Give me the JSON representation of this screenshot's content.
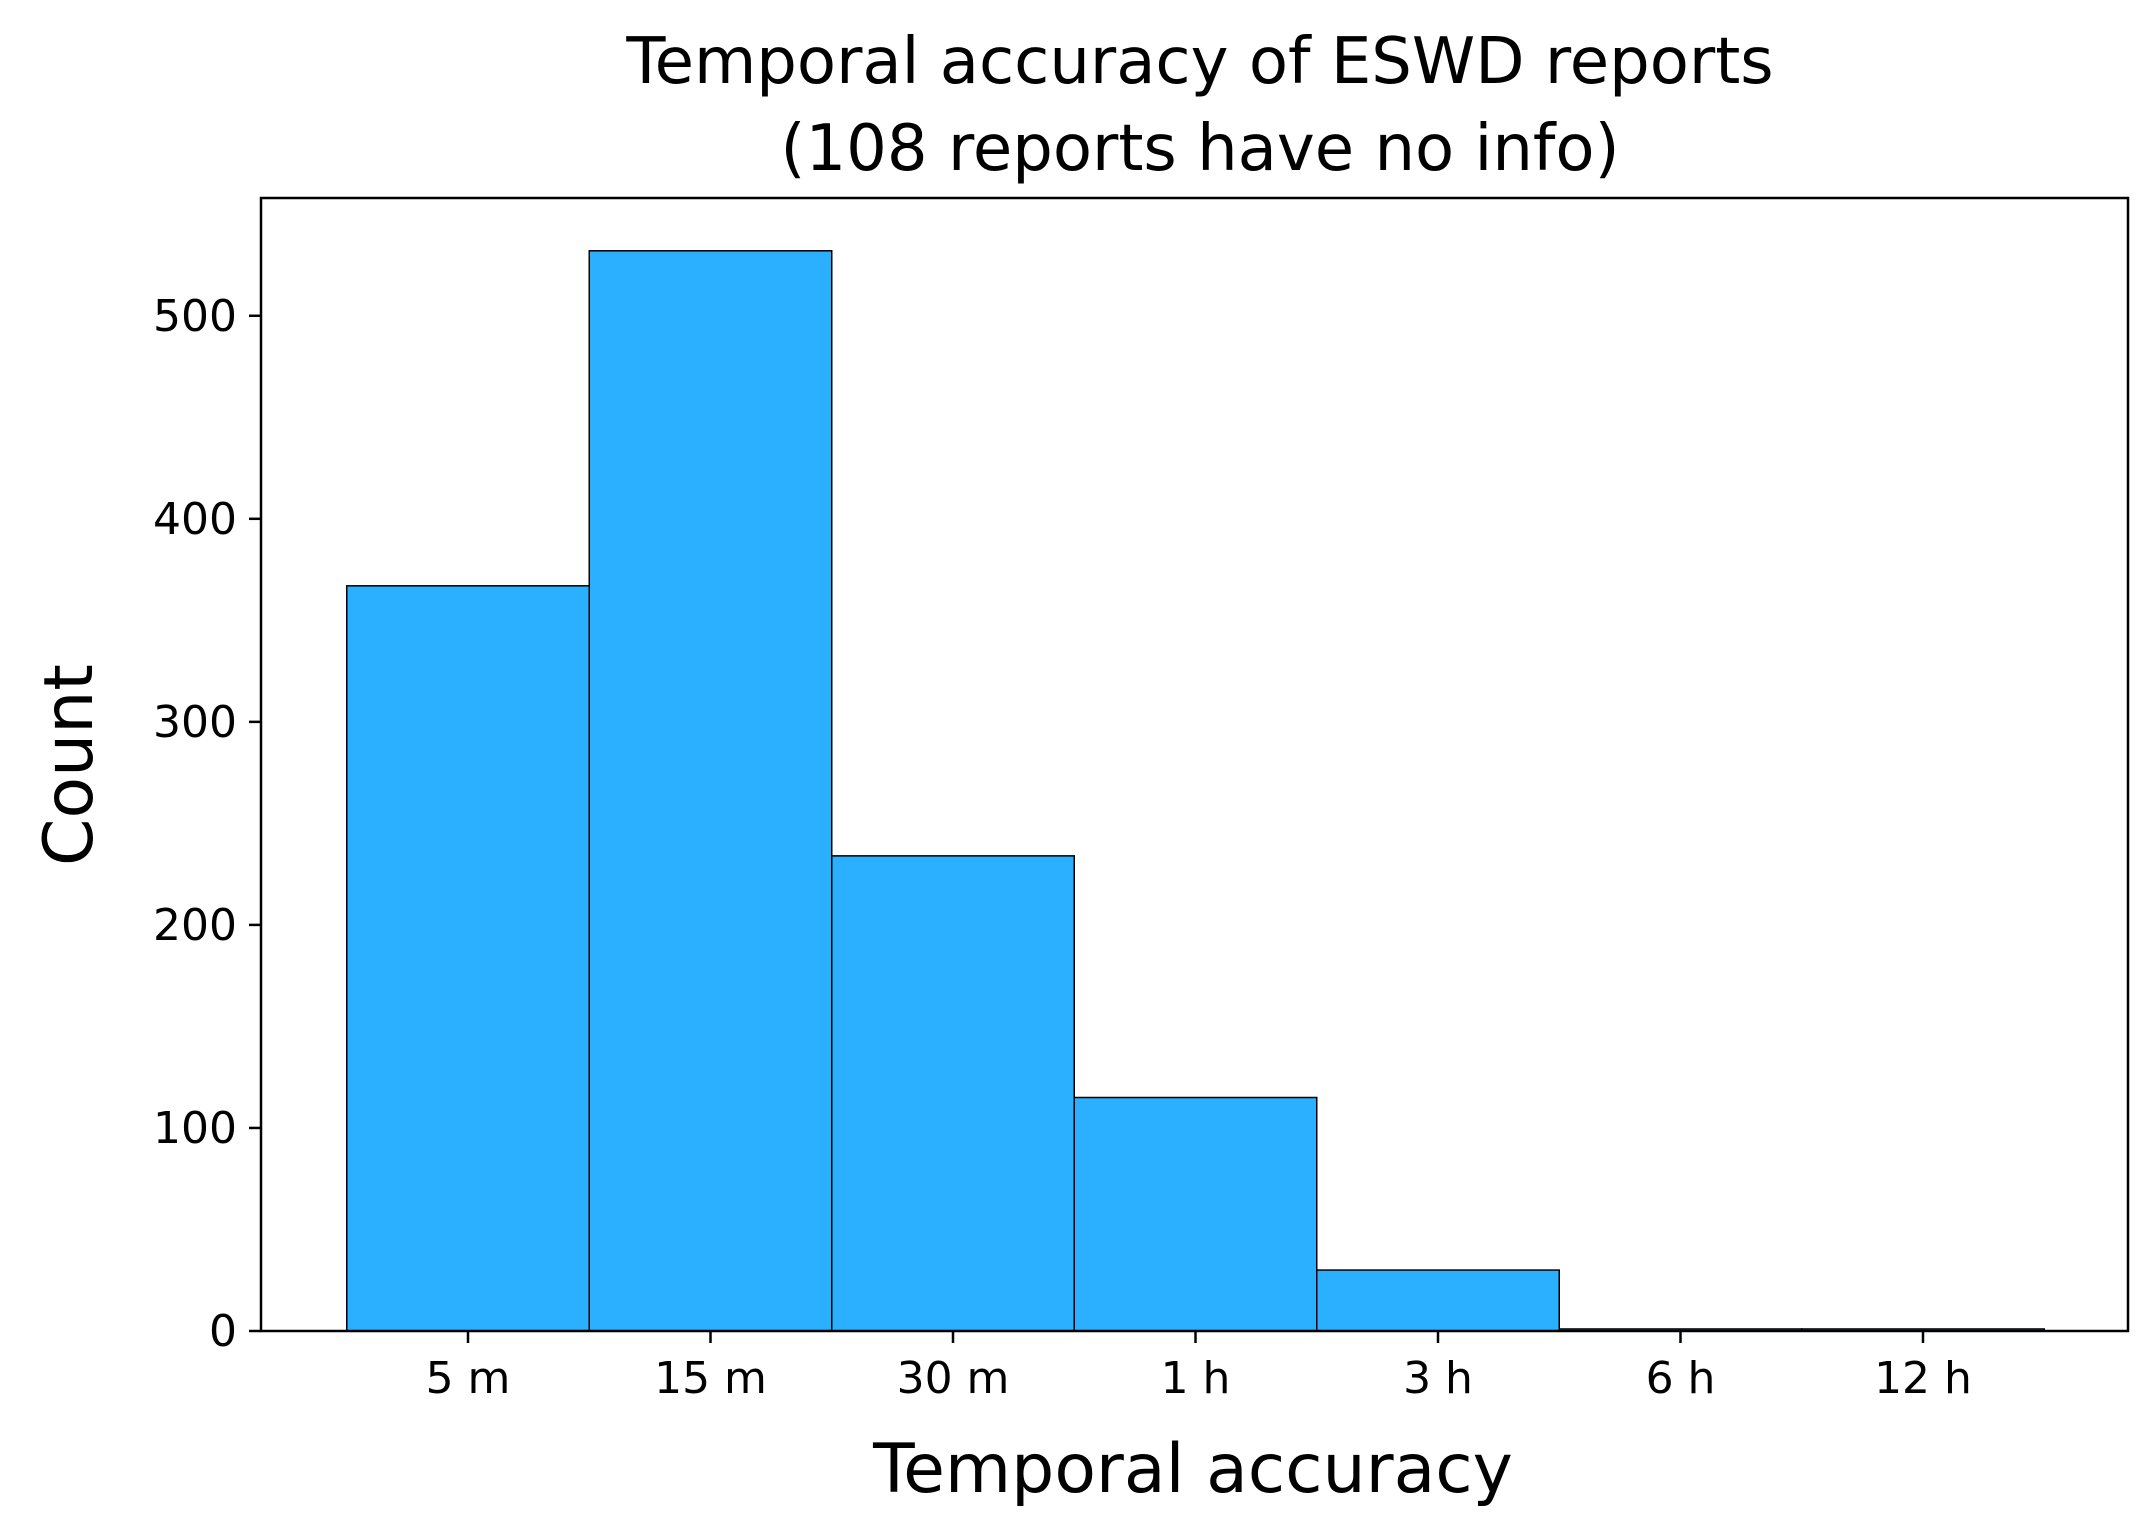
{
  "chart_data": {
    "type": "bar",
    "title": "Temporal accuracy of ESWD reports",
    "subtitle": "(108 reports have no info)",
    "xlabel": "Temporal accuracy",
    "ylabel": "Count",
    "categories": [
      "5 m",
      "15 m",
      "30 m",
      "1 h",
      "3 h",
      "6 h",
      "12 h"
    ],
    "values": [
      367,
      532,
      234,
      115,
      30,
      1,
      1
    ],
    "ylim": [
      0,
      558
    ],
    "yticks": [
      0,
      100,
      200,
      300,
      400,
      500
    ],
    "grid": false,
    "legend": "none",
    "colors": {
      "bar_fill": "#2bafff",
      "bar_edge": "#000000",
      "axes": "#000000",
      "background": "#ffffff"
    }
  }
}
